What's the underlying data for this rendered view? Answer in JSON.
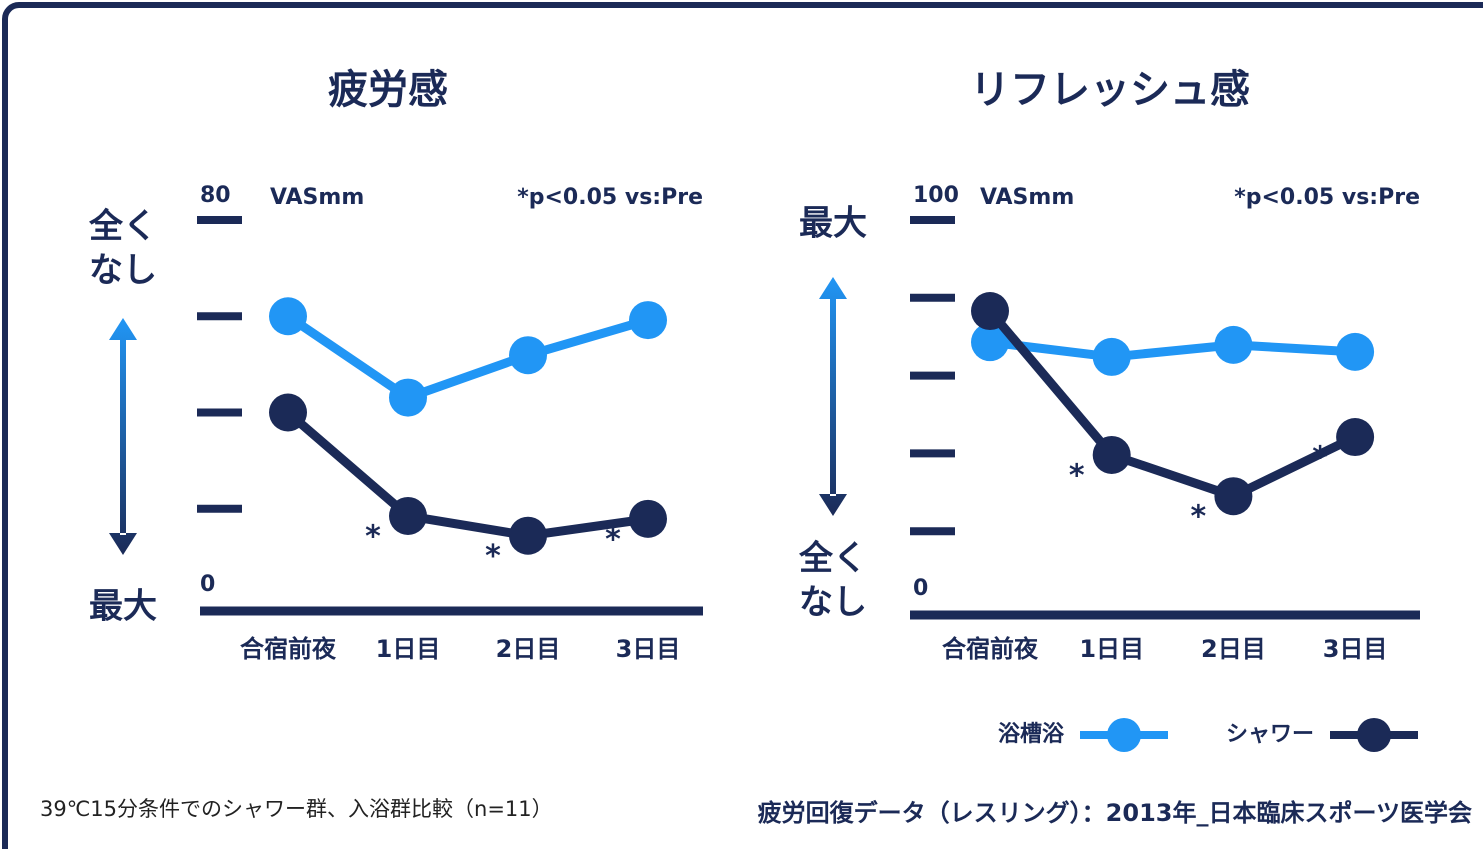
{
  "chart_data": [
    {
      "type": "line",
      "title": "疲労感",
      "unit_label": "VASmm",
      "note": "*p<0.05 vs:Pre",
      "axis_top_label": [
        "全く",
        "なし"
      ],
      "axis_bottom_label": [
        "最大"
      ],
      "categories": [
        "合宿前夜",
        "1日目",
        "2日目",
        "3日目"
      ],
      "series": [
        {
          "color": "#2196f5",
          "values": [
            60,
            43.1,
            51.9,
            59.2
          ]
        },
        {
          "color": "#1b2a57",
          "values": [
            40,
            18.5,
            14.4,
            17.9
          ],
          "annotations": [
            null,
            "*",
            "*",
            "*"
          ]
        }
      ],
      "ylim": [
        0,
        80
      ],
      "yticks": [
        0,
        {
          "value": 20,
          "label": null
        },
        {
          "value": 40,
          "label": null
        },
        {
          "value": 60,
          "label": null
        },
        80
      ]
    },
    {
      "type": "line",
      "title": "リフレッシュ感",
      "unit_label": "VASmm",
      "note": "*p<0.05 vs:Pre",
      "axis_top_label": [
        "最大"
      ],
      "axis_bottom_label": [
        "全く",
        "なし"
      ],
      "categories": [
        "合宿前夜",
        "1日目",
        "2日目",
        "3日目"
      ],
      "series": [
        {
          "name": "浴槽浴",
          "color": "#2196f5",
          "values": [
            68.6,
            64.8,
            67.9,
            66.1
          ]
        },
        {
          "name": "シャワー",
          "color": "#1b2a57",
          "values": [
            76.6,
            39.6,
            29.0,
            44.2
          ],
          "annotations": [
            null,
            "*",
            "*",
            "*"
          ]
        }
      ],
      "ylim": [
        0,
        100
      ],
      "yticks": [
        0,
        {
          "value": 20,
          "label": null
        },
        {
          "value": 40,
          "label": null
        },
        {
          "value": 60,
          "label": null
        },
        {
          "value": 80,
          "label": null
        },
        100
      ],
      "legend": "bottom-right"
    }
  ],
  "footer_left": "39℃15分条件でのシャワー群、入浴群比較（n=11）",
  "footer_right": "疲労回復データ（レスリング）：2013年_日本臨床スポーツ医学会"
}
